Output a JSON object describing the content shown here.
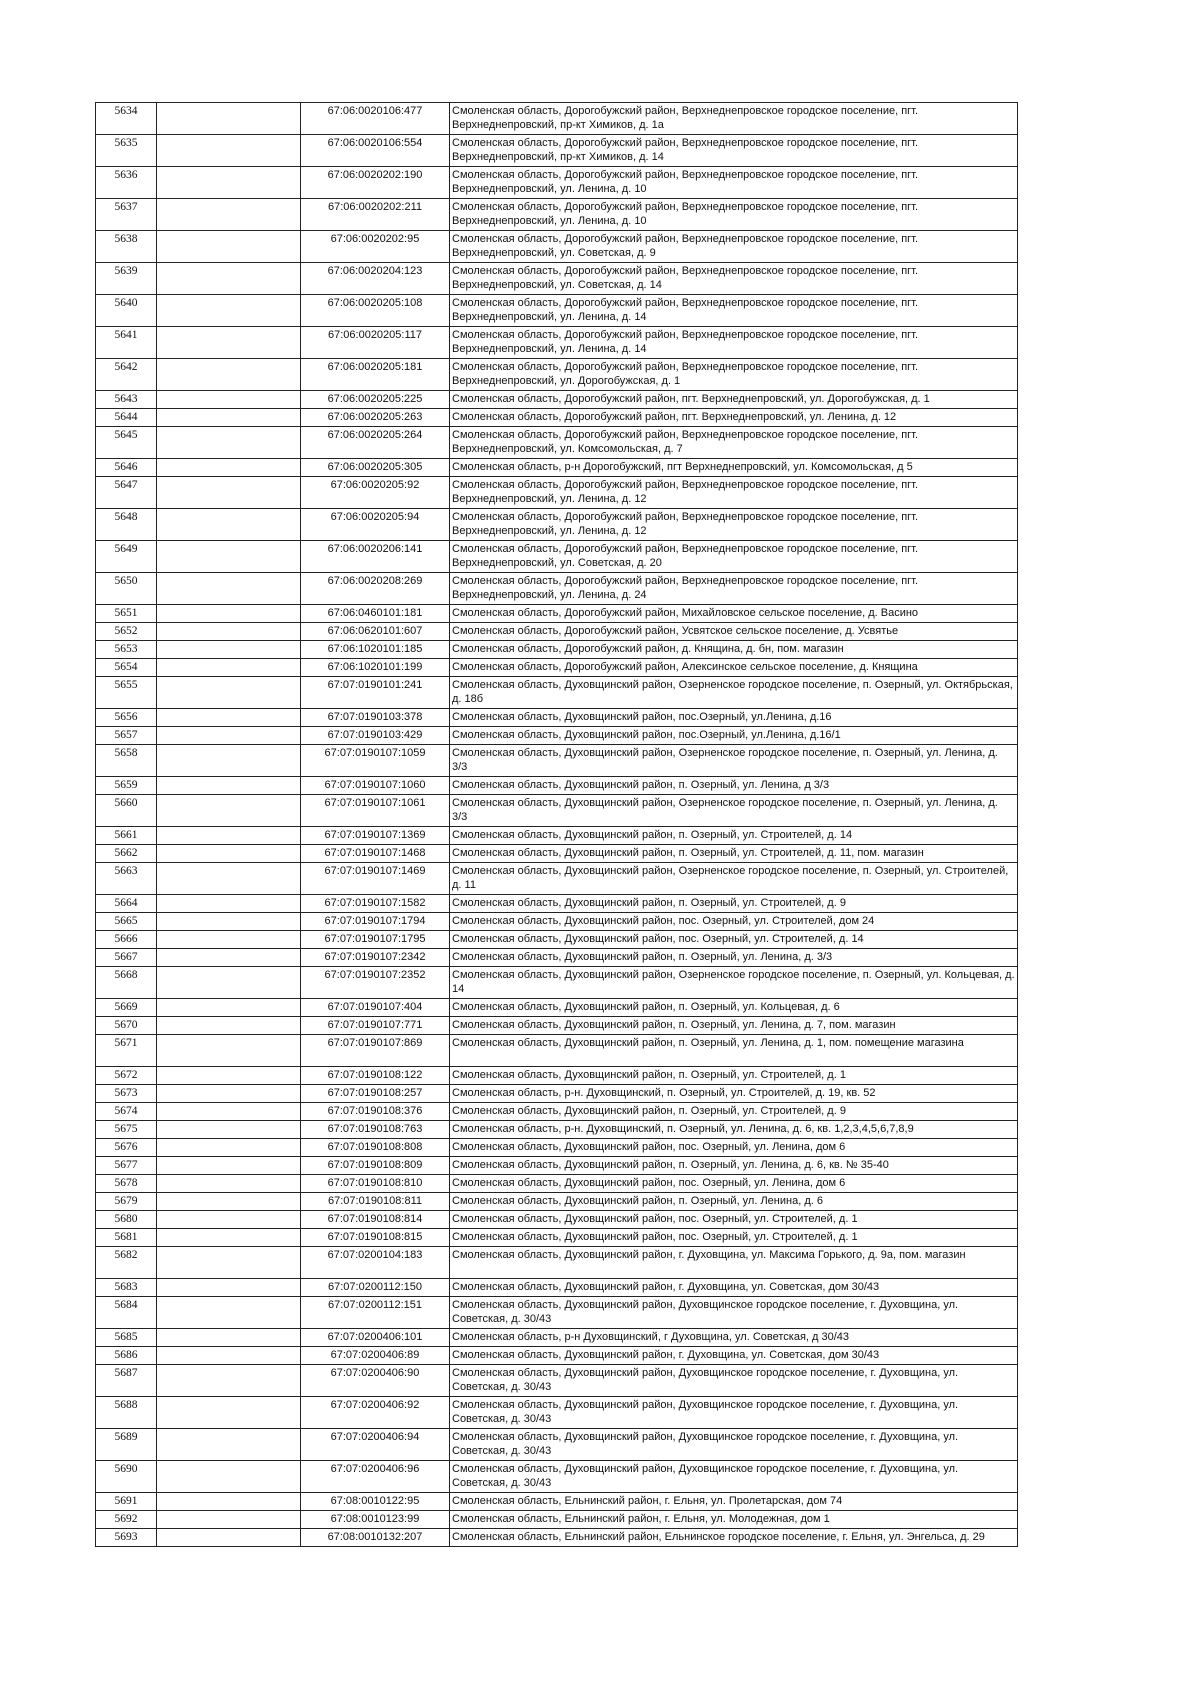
{
  "rows": [
    {
      "n": "5634",
      "cad": "67:06:0020106:477",
      "addr": "Смоленская область, Дорогобужский район, Верхнеднепровское городское поселение, пгт. Верхнеднепровский, пр-кт Химиков, д. 1а"
    },
    {
      "n": "5635",
      "cad": "67:06:0020106:554",
      "addr": "Смоленская область, Дорогобужский район, Верхнеднепровское городское поселение, пгт. Верхнеднепровский, пр-кт Химиков, д. 14"
    },
    {
      "n": "5636",
      "cad": "67:06:0020202:190",
      "addr": "Смоленская область, Дорогобужский район, Верхнеднепровское городское поселение, пгт. Верхнеднепровский, ул. Ленина, д. 10"
    },
    {
      "n": "5637",
      "cad": "67:06:0020202:211",
      "addr": "Смоленская область, Дорогобужский район, Верхнеднепровское городское поселение, пгт. Верхнеднепровский, ул. Ленина, д. 10"
    },
    {
      "n": "5638",
      "cad": "67:06:0020202:95",
      "addr": "Смоленская область, Дорогобужский район, Верхнеднепровское городское поселение, пгт. Верхнеднепровский, ул. Советская, д. 9"
    },
    {
      "n": "5639",
      "cad": "67:06:0020204:123",
      "addr": "Смоленская область, Дорогобужский район, Верхнеднепровское городское поселение, пгт. Верхнеднепровский, ул. Советская, д. 14"
    },
    {
      "n": "5640",
      "cad": "67:06:0020205:108",
      "addr": "Смоленская область, Дорогобужский район, Верхнеднепровское городское поселение, пгт. Верхнеднепровский, ул. Ленина, д. 14"
    },
    {
      "n": "5641",
      "cad": "67:06:0020205:117",
      "addr": "Смоленская область, Дорогобужский район, Верхнеднепровское городское поселение, пгт. Верхнеднепровский, ул. Ленина, д. 14"
    },
    {
      "n": "5642",
      "cad": "67:06:0020205:181",
      "addr": "Смоленская область, Дорогобужский район, Верхнеднепровское городское поселение, пгт. Верхнеднепровский, ул. Дорогобужская, д. 1"
    },
    {
      "n": "5643",
      "cad": "67:06:0020205:225",
      "addr": "Смоленская область, Дорогобужский район, пгт. Верхнеднепровский, ул. Дорогобужская, д. 1"
    },
    {
      "n": "5644",
      "cad": "67:06:0020205:263",
      "addr": "Смоленская область, Дорогобужский район, пгт. Верхнеднепровский, ул. Ленина, д. 12"
    },
    {
      "n": "5645",
      "cad": "67:06:0020205:264",
      "addr": "Смоленская область, Дорогобужский район, Верхнеднепровское городское поселение, пгт. Верхнеднепровский, ул. Комсомольская, д. 7"
    },
    {
      "n": "5646",
      "cad": "67:06:0020205:305",
      "addr": "Смоленская область, р-н Дорогобужский, пгт Верхнеднепровский, ул. Комсомольская, д 5"
    },
    {
      "n": "5647",
      "cad": "67:06:0020205:92",
      "addr": "Смоленская область, Дорогобужский район, Верхнеднепровское городское поселение, пгт. Верхнеднепровский, ул. Ленина, д. 12"
    },
    {
      "n": "5648",
      "cad": "67:06:0020205:94",
      "addr": "Смоленская область, Дорогобужский район, Верхнеднепровское городское поселение, пгт. Верхнеднепровский, ул. Ленина, д. 12"
    },
    {
      "n": "5649",
      "cad": "67:06:0020206:141",
      "addr": "Смоленская область, Дорогобужский район, Верхнеднепровское городское поселение, пгт. Верхнеднепровский, ул. Советская, д. 20"
    },
    {
      "n": "5650",
      "cad": "67:06:0020208:269",
      "addr": "Смоленская область, Дорогобужский район, Верхнеднепровское городское поселение, пгт. Верхнеднепровский, ул. Ленина, д. 24"
    },
    {
      "n": "5651",
      "cad": "67:06:0460101:181",
      "addr": "Смоленская область, Дорогобужский район, Михайловское сельское поселение, д. Васино"
    },
    {
      "n": "5652",
      "cad": "67:06:0620101:607",
      "addr": "Смоленская область, Дорогобужский район, Усвятское сельское поселение, д. Усвятье"
    },
    {
      "n": "5653",
      "cad": "67:06:1020101:185",
      "addr": "Смоленская область, Дорогобужский район, д. Княщина, д. бн, пом. магазин"
    },
    {
      "n": "5654",
      "cad": "67:06:1020101:199",
      "addr": "Смоленская область, Дорогобужский район, Алексинское сельское поселение, д. Княщина"
    },
    {
      "n": "5655",
      "cad": "67:07:0190101:241",
      "addr": "Смоленская область, Духовщинский район, Озерненское городское поселение, п. Озерный, ул. Октябрьская, д. 18б"
    },
    {
      "n": "5656",
      "cad": "67:07:0190103:378",
      "addr": "Смоленская область, Духовщинский район, пос.Озерный, ул.Ленина, д.16"
    },
    {
      "n": "5657",
      "cad": "67:07:0190103:429",
      "addr": "Смоленская область, Духовщинский район, пос.Озерный, ул.Ленина, д.16/1"
    },
    {
      "n": "5658",
      "cad": "67:07:0190107:1059",
      "addr": "Смоленская область, Духовщинский район, Озерненское городское поселение, п. Озерный, ул. Ленина, д. 3/3"
    },
    {
      "n": "5659",
      "cad": "67:07:0190107:1060",
      "addr": "Смоленская область, Духовщинский район, п. Озерный, ул. Ленина, д 3/3"
    },
    {
      "n": "5660",
      "cad": "67:07:0190107:1061",
      "addr": "Смоленская область, Духовщинский район, Озерненское городское поселение, п. Озерный, ул. Ленина, д. 3/3"
    },
    {
      "n": "5661",
      "cad": "67:07:0190107:1369",
      "addr": "Смоленская область, Духовщинский район, п. Озерный, ул. Строителей, д. 14"
    },
    {
      "n": "5662",
      "cad": "67:07:0190107:1468",
      "addr": "Смоленская область, Духовщинский район, п. Озерный, ул. Строителей, д. 11, пом. магазин"
    },
    {
      "n": "5663",
      "cad": "67:07:0190107:1469",
      "addr": "Смоленская область, Духовщинский район, Озерненское городское поселение, п. Озерный, ул. Строителей, д. 11"
    },
    {
      "n": "5664",
      "cad": "67:07:0190107:1582",
      "addr": "Смоленская область, Духовщинский район, п. Озерный, ул. Строителей, д. 9"
    },
    {
      "n": "5665",
      "cad": "67:07:0190107:1794",
      "addr": "Смоленская область, Духовщинский район, пос. Озерный, ул. Строителей, дом 24"
    },
    {
      "n": "5666",
      "cad": "67:07:0190107:1795",
      "addr": "Смоленская область, Духовщинский район, пос. Озерный, ул. Строителей, д. 14"
    },
    {
      "n": "5667",
      "cad": "67:07:0190107:2342",
      "addr": "Смоленская область, Духовщинский район, п. Озерный, ул. Ленина, д. 3/3"
    },
    {
      "n": "5668",
      "cad": "67:07:0190107:2352",
      "addr": "Смоленская область, Духовщинский район, Озерненское городское поселение, п. Озерный, ул. Кольцевая, д. 14"
    },
    {
      "n": "5669",
      "cad": "67:07:0190107:404",
      "addr": "Смоленская область, Духовщинский район, п. Озерный, ул. Кольцевая, д. 6"
    },
    {
      "n": "5670",
      "cad": "67:07:0190107:771",
      "addr": "Смоленская область, Духовщинский район, п. Озерный, ул. Ленина, д. 7, пом. магазин"
    },
    {
      "n": "5671",
      "cad": "67:07:0190107:869",
      "addr": "Смоленская область, Духовщинский район, п. Озерный, ул. Ленина, д. 1, пом. помещение магазина"
    },
    {
      "n": "5672",
      "cad": "67:07:0190108:122",
      "addr": "Смоленская область, Духовщинский район, п. Озерный, ул. Строителей, д. 1"
    },
    {
      "n": "5673",
      "cad": "67:07:0190108:257",
      "addr": "Смоленская область, р-н. Духовщинский, п. Озерный, ул. Строителей, д. 19, кв. 52"
    },
    {
      "n": "5674",
      "cad": "67:07:0190108:376",
      "addr": "Смоленская область, Духовщинский район, п. Озерный, ул. Строителей, д. 9"
    },
    {
      "n": "5675",
      "cad": "67:07:0190108:763",
      "addr": "Смоленская область, р-н. Духовщинский, п. Озерный, ул. Ленина, д. 6, кв. 1,2,3,4,5,6,7,8,9"
    },
    {
      "n": "5676",
      "cad": "67:07:0190108:808",
      "addr": "Смоленская область, Духовщинский район, пос. Озерный, ул. Ленина, дом 6"
    },
    {
      "n": "5677",
      "cad": "67:07:0190108:809",
      "addr": "Смоленская область, Духовщинский район, п. Озерный, ул. Ленина, д. 6, кв. № 35-40"
    },
    {
      "n": "5678",
      "cad": "67:07:0190108:810",
      "addr": "Смоленская область, Духовщинский район, пос. Озерный, ул. Ленина, дом 6"
    },
    {
      "n": "5679",
      "cad": "67:07:0190108:811",
      "addr": "Смоленская область, Духовщинский район, п. Озерный, ул. Ленина, д. 6"
    },
    {
      "n": "5680",
      "cad": "67:07:0190108:814",
      "addr": "Смоленская область, Духовщинский район, пос. Озерный, ул. Строителей, д. 1"
    },
    {
      "n": "5681",
      "cad": "67:07:0190108:815",
      "addr": "Смоленская область, Духовщинский район, пос. Озерный, ул. Строителей, д. 1"
    },
    {
      "n": "5682",
      "cad": "67:07:0200104:183",
      "addr": "Смоленская область, Духовщинский район, г. Духовщина, ул. Максима Горького, д. 9а, пом. магазин"
    },
    {
      "n": "5683",
      "cad": "67:07:0200112:150",
      "addr": "Смоленская область, Духовщинский район, г. Духовщина, ул. Советская, дом 30/43"
    },
    {
      "n": "5684",
      "cad": "67:07:0200112:151",
      "addr": "Смоленская область, Духовщинский район, Духовщинское городское поселение, г. Духовщина, ул. Советская, д. 30/43"
    },
    {
      "n": "5685",
      "cad": "67:07:0200406:101",
      "addr": "Смоленская область, р-н Духовщинский, г Духовщина, ул. Советская, д 30/43"
    },
    {
      "n": "5686",
      "cad": "67:07:0200406:89",
      "addr": "Смоленская область, Духовщинский район, г. Духовщина, ул. Советская, дом 30/43"
    },
    {
      "n": "5687",
      "cad": "67:07:0200406:90",
      "addr": "Смоленская область, Духовщинский район, Духовщинское городское поселение, г. Духовщина, ул. Советская, д. 30/43"
    },
    {
      "n": "5688",
      "cad": "67:07:0200406:92",
      "addr": "Смоленская область, Духовщинский район, Духовщинское городское поселение, г. Духовщина, ул. Советская, д. 30/43"
    },
    {
      "n": "5689",
      "cad": "67:07:0200406:94",
      "addr": "Смоленская область, Духовщинский район, Духовщинское городское поселение, г. Духовщина, ул. Советская, д. 30/43"
    },
    {
      "n": "5690",
      "cad": "67:07:0200406:96",
      "addr": "Смоленская область, Духовщинский район, Духовщинское городское поселение, г. Духовщина, ул. Советская, д. 30/43"
    },
    {
      "n": "5691",
      "cad": "67:08:0010122:95",
      "addr": "Смоленская область, Ельнинский район, г. Ельня, ул. Пролетарская, дом 74"
    },
    {
      "n": "5692",
      "cad": "67:08:0010123:99",
      "addr": "Смоленская область, Ельнинский район, г. Ельня, ул. Молодежная, дом 1"
    },
    {
      "n": "5693",
      "cad": "67:08:0010132:207",
      "addr": "Смоленская область, Ельнинский район, Ельнинское городское поселение, г. Ельня, ул. Энгельса, д. 29"
    }
  ]
}
